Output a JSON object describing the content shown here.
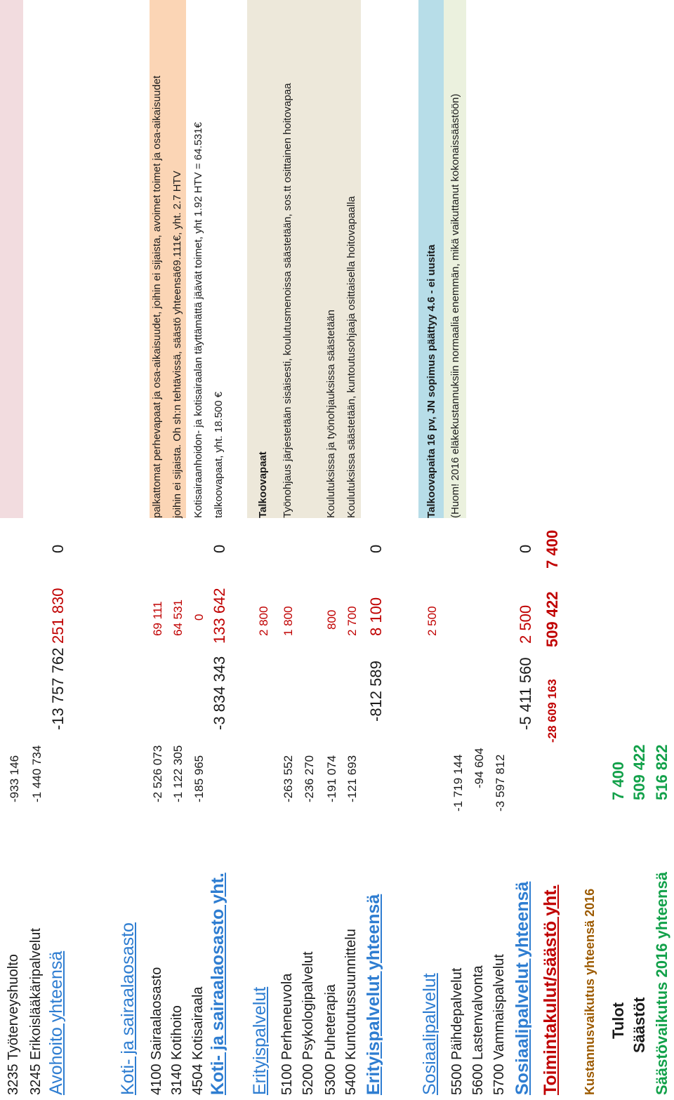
{
  "bands": {
    "pink": "#f2dcdf",
    "peach": "#fbd5b5",
    "beige": "#ede8da",
    "blue": "#b7dde8",
    "green": "#ebf1de"
  },
  "avohoito": {
    "rows": [
      {
        "label": "3235 Työterveyshuolto",
        "value": "-933 146"
      },
      {
        "label": "3245 Erikoislääkäripalvelut",
        "value": "-1 440 734"
      }
    ],
    "total_label": "Avohoito yhteensä",
    "total_value": "-13 757 762",
    "total_saving": "251 830",
    "total_zero": "0"
  },
  "koti": {
    "header": "Koti- ja sairaalaosasto",
    "rows": [
      {
        "label": "4100 Sairaalaosasto",
        "value": "-2 526 073",
        "saving": "69 111",
        "note": "palkattomat perhevapaat ja osa-aikaisuudet, joihin ei sijaista, avoimet toimet ja osa-aikaisuudet"
      },
      {
        "label": "3140 Kotihoito",
        "value": "-1 122 305",
        "saving": "64 531",
        "note": "joihin ei sijaista. Oh sh:n tehtävissä, säästö yhteensä69.111€, yht. 2.7 HTV"
      },
      {
        "label": "4504 Kotisairaala",
        "value": "-185 965",
        "saving": "0",
        "note": "Kotisairaanhoidon- ja kotisairaalan täyttämättä jäävät toimet, yht 1.92 HTV = 64.531€"
      }
    ],
    "total_label": "Koti- ja sairaalaosasto yht.",
    "total_value": "-3 834 343",
    "total_saving": "133 642",
    "total_zero": "0",
    "total_note": "talkoovapaat, yht. 18.500 €"
  },
  "erityis": {
    "header": "Erityispalvelut",
    "note_title": "Talkoovapaat",
    "rows": [
      {
        "label": "5100 Perheneuvola",
        "value": "-263 552",
        "saving": "1 800",
        "note": "Työnohjaus järjestetään sisäisesti, koulutusmenoissa säästetään, sos.tt osittainen hoitovapaa"
      },
      {
        "label": "5200 Psykologipalvelut",
        "value": "-236 270",
        "saving": "",
        "note": ""
      },
      {
        "label": "5300 Puheterapia",
        "value": "-191 074",
        "saving": "800",
        "note": "Koulutuksissa ja työnohjauksissa säästetään"
      },
      {
        "label": "5400 Kuntoutussuunnittelu",
        "value": "-121 693",
        "saving": "2 700",
        "note": "Koulutuksissa säästetään, kuntoutusohjaaja osittaisella hoitovapaalla"
      }
    ],
    "header_saving": "2 800",
    "total_label": "Erityispalvelut yhteensä",
    "total_value": "-812 589",
    "total_saving": "8 100",
    "total_zero": "0"
  },
  "sosiaali": {
    "header": "Sosiaalipalvelut",
    "rows": [
      {
        "label": "5500 Päihdepalvelut",
        "value": "-1 719 144",
        "saving": "2 500",
        "note": "Talkoovapaita 16 pv, JN sopimus päättyy 4.6 - ei uusita"
      },
      {
        "label": "5600 Lastenvalvonta",
        "value": "-94 604",
        "saving": "",
        "note": "(Huom! 2016 eläkekustannuksiin normaalia enemmän, mikä vaikuttanut kokonaissäästöön)"
      },
      {
        "label": "5700 Vammaispalvelut",
        "value": "-3 597 812",
        "saving": "",
        "note": ""
      }
    ],
    "total_label": "Sosiaalipalvelut yhteensä",
    "total_value": "-5 411 560",
    "total_saving": "2 500",
    "total_zero": "0"
  },
  "toiminta": {
    "label": "Toimintakulut/säästö yht.",
    "value": "-28 609 163",
    "saving": "509 422",
    "extra": "7 400"
  },
  "summary": {
    "title": "Kustannusvaikutus yhteensä 2016",
    "tulot_label": "Tulot",
    "tulot_value": "7 400",
    "saastot_label": "Säästöt",
    "saastot_value": "509 422",
    "total_label": "Säästövaikutus 2016 yhteensä",
    "total_value": "516 822"
  }
}
